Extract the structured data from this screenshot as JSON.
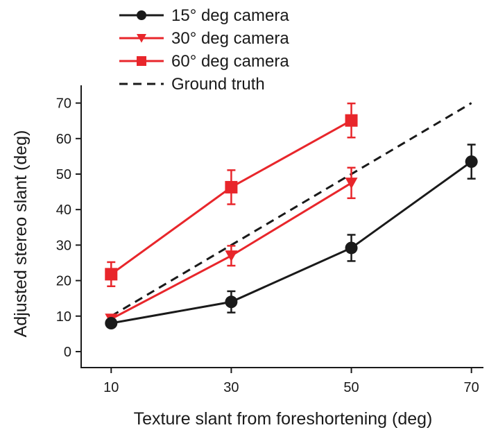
{
  "chart_data": {
    "type": "line",
    "title": "",
    "xlabel": "Texture slant from foreshortening (deg)",
    "ylabel": "Adjusted stereo slant (deg)",
    "x_ticks": [
      10,
      30,
      50,
      70
    ],
    "x_tick_labels": [
      "10",
      "30",
      "50",
      "70"
    ],
    "y_ticks": [
      0,
      10,
      20,
      30,
      40,
      50,
      60,
      70
    ],
    "y_tick_labels": [
      "0",
      "10",
      "20",
      "30",
      "40",
      "50",
      "60",
      "70"
    ],
    "xlim": [
      5,
      72
    ],
    "ylim": [
      -4.5,
      75
    ],
    "grid": false,
    "legend_position": "top-left",
    "series": [
      {
        "name": "15° deg camera",
        "color": "#1a1a1a",
        "marker": "circle",
        "points": [
          {
            "x": 10,
            "y": 8,
            "err": 0
          },
          {
            "x": 30,
            "y": 14,
            "err": 3
          },
          {
            "x": 50,
            "y": 29.2,
            "err": 3.7
          },
          {
            "x": 70,
            "y": 53.5,
            "err": 4.8
          }
        ]
      },
      {
        "name": "30° deg camera",
        "color": "#e8262b",
        "marker": "triangle-down",
        "points": [
          {
            "x": 10,
            "y": 9.2,
            "err": 0
          },
          {
            "x": 30,
            "y": 27,
            "err": 2.8
          },
          {
            "x": 50,
            "y": 47.5,
            "err": 4.3
          }
        ]
      },
      {
        "name": "60° deg camera",
        "color": "#e8262b",
        "marker": "square",
        "points": [
          {
            "x": 10,
            "y": 21.8,
            "err": 3.4
          },
          {
            "x": 30,
            "y": 46.3,
            "err": 4.8
          },
          {
            "x": 50,
            "y": 65.1,
            "err": 4.8
          }
        ]
      },
      {
        "name": "Ground truth",
        "color": "#1a1a1a",
        "style": "dashed",
        "points": [
          {
            "x": 10,
            "y": 10
          },
          {
            "x": 70,
            "y": 70
          }
        ]
      }
    ]
  }
}
